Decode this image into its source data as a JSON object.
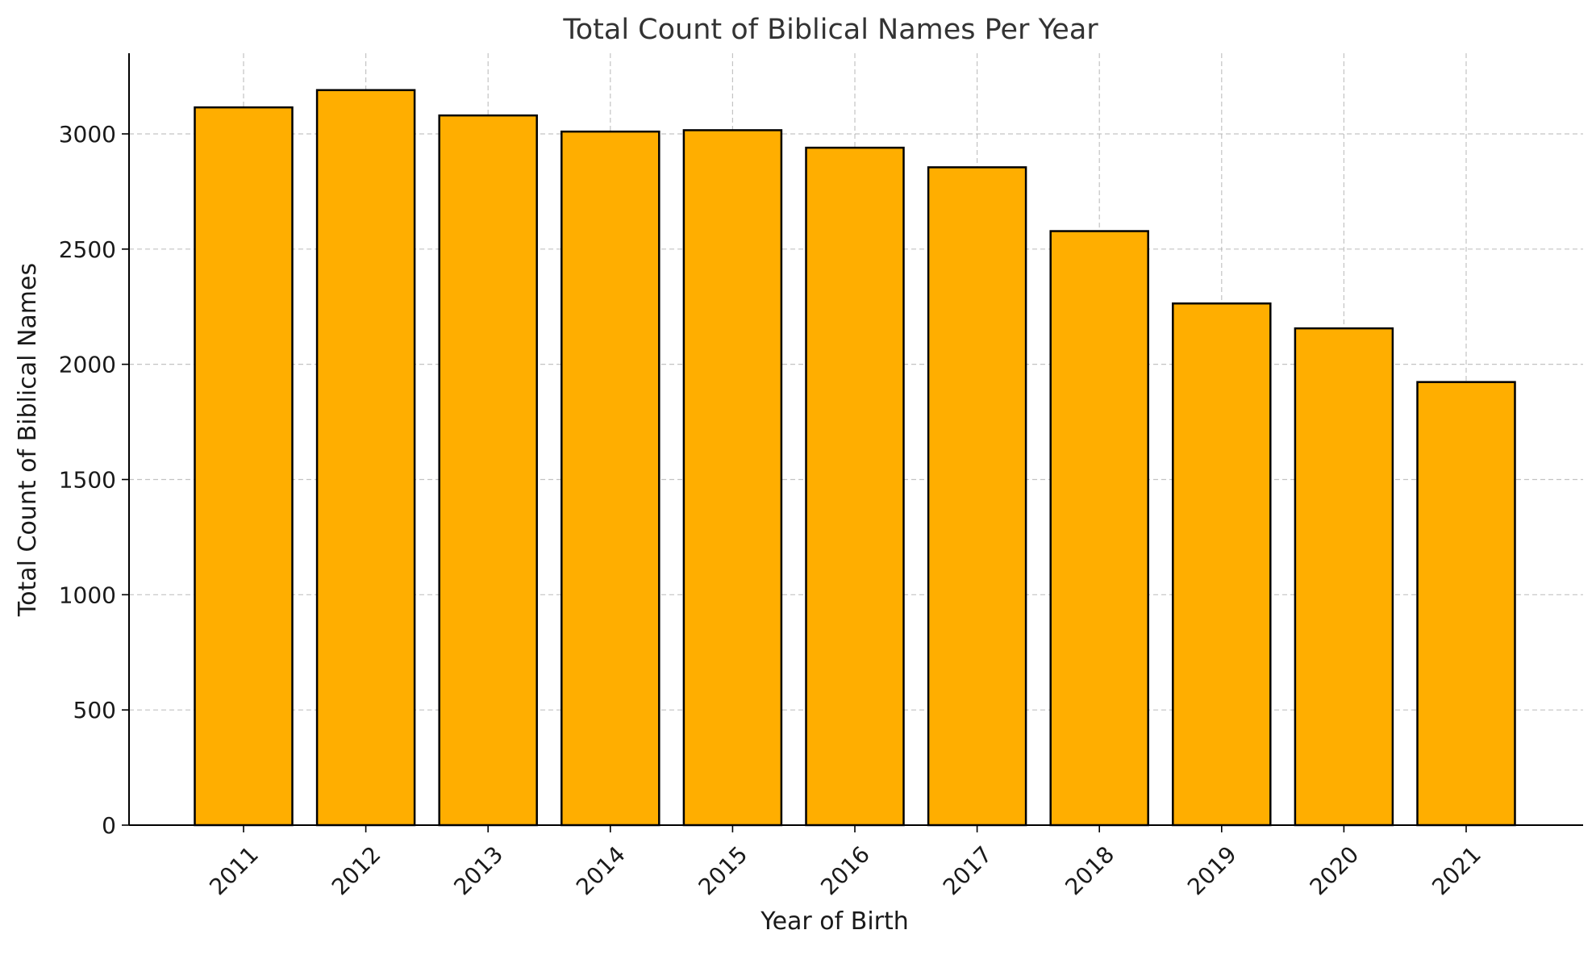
{
  "chart_data": {
    "type": "bar",
    "title": "Total Count of Biblical Names Per Year",
    "xlabel": "Year of Birth",
    "ylabel": "Total Count of Biblical Names",
    "categories": [
      "2011",
      "2012",
      "2013",
      "2014",
      "2015",
      "2016",
      "2017",
      "2018",
      "2019",
      "2020",
      "2021"
    ],
    "values": [
      3115,
      3190,
      3080,
      3010,
      3016,
      2940,
      2855,
      2578,
      2264,
      2156,
      1923
    ],
    "ylim": [
      0,
      3350
    ],
    "yticks": [
      0,
      500,
      1000,
      1500,
      2000,
      2500,
      3000
    ],
    "bar_color": "#FFAE00",
    "edge_color": "#000000",
    "grid": true,
    "legend": "none"
  }
}
